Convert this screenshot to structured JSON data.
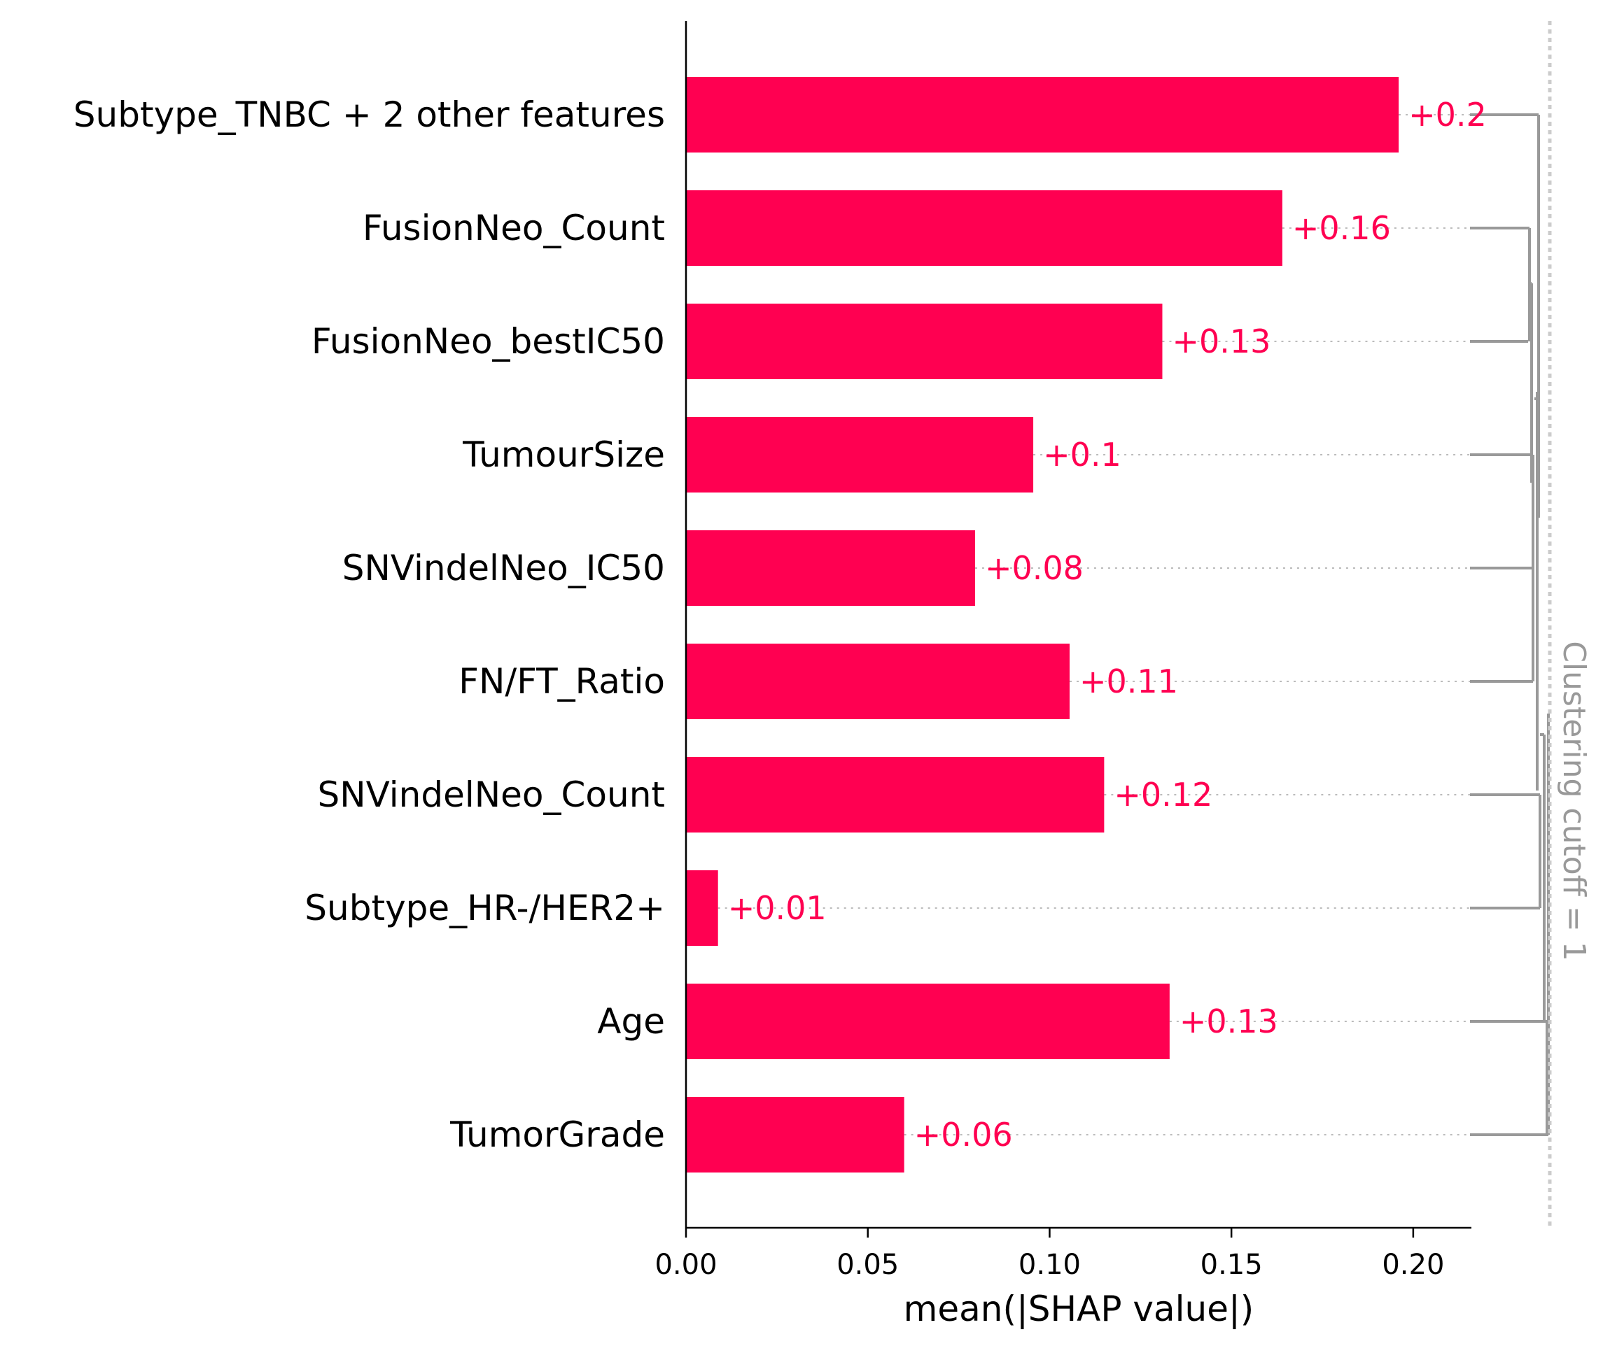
{
  "chart_data": {
    "type": "bar",
    "orientation": "horizontal",
    "categories": [
      "Subtype_TNBC + 2 other features",
      "FusionNeo_Count",
      "FusionNeo_bestIC50",
      "TumourSize",
      "SNVindelNeo_IC50",
      "FN/FT_Ratio",
      "SNVindelNeo_Count",
      "Subtype_HR-/HER2+",
      "Age",
      "TumorGrade"
    ],
    "values": [
      0.196,
      0.164,
      0.131,
      0.0955,
      0.0795,
      0.1055,
      0.115,
      0.0088,
      0.133,
      0.06
    ],
    "value_labels": [
      "+0.2",
      "+0.16",
      "+0.13",
      "+0.1",
      "+0.08",
      "+0.11",
      "+0.12",
      "+0.01",
      "+0.13",
      "+0.06"
    ],
    "xlabel": "mean(|SHAP value|)",
    "xticks": [
      "0.00",
      "0.05",
      "0.10",
      "0.15",
      "0.20"
    ],
    "xtick_values": [
      0.0,
      0.05,
      0.1,
      0.15,
      0.2
    ],
    "xlim": [
      0,
      0.216
    ],
    "clustering_label": "Clustering cutoff = 1",
    "colors": {
      "bar": "#ff0051",
      "value_text": "#ff0051",
      "dendrogram": "#999999",
      "cutoff_line": "#cccccc",
      "axis": "#000000"
    },
    "grid": false,
    "legend": "none"
  }
}
